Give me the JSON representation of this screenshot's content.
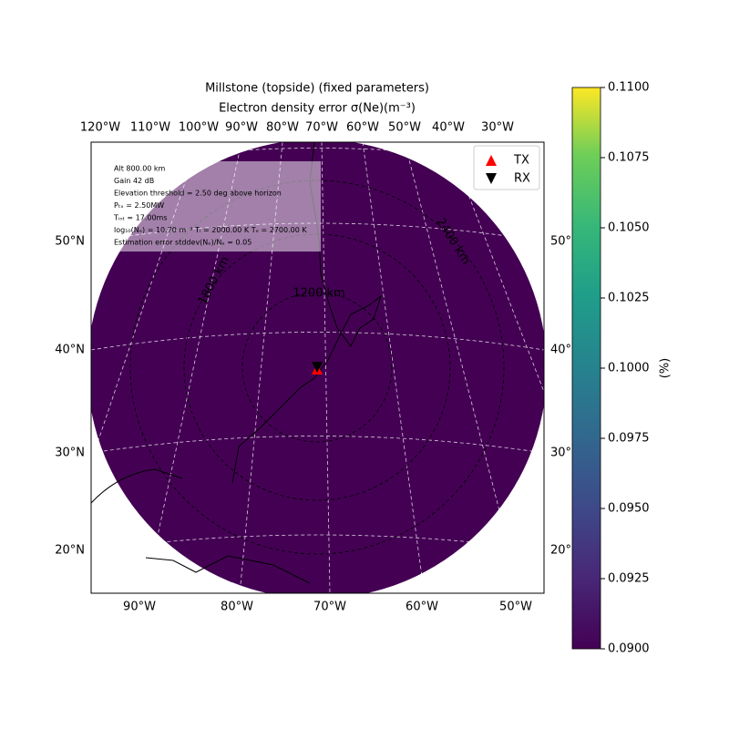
{
  "title": "Millstone (topside) (fixed parameters)",
  "subtitle": "Electron density error σ(Ne)(m⁻³)",
  "info_lines": [
    "Alt 800.00 km",
    "Gain 42 dB",
    "Elevation threshold = 2.50 deg above horizon",
    "Pₜₓ = 2.50MW",
    "Tᵢₙₜ = 17.00ms",
    "log₁₀(Nₑ) = 10.70 m⁻³ Tᵢ = 2000.00 K Tₑ = 2700.00 K",
    "Estimation error stddev(Nₑ)/Nₑ = 0.05"
  ],
  "legend": [
    {
      "name": "TX",
      "color": "#ff0000"
    },
    {
      "name": "RX",
      "color": "#000000"
    }
  ],
  "top_lon_labels": [
    "120°W",
    "110°W",
    "100°W",
    "90°W",
    "80°W",
    "70°W",
    "60°W",
    "50°W",
    "40°W",
    "30°W"
  ],
  "bottom_lon_labels": [
    "90°W",
    "80°W",
    "70°W",
    "60°W",
    "50°W"
  ],
  "left_lat_labels": [
    "50°N",
    "40°N",
    "30°N",
    "20°N"
  ],
  "right_lat_labels": [
    "50°",
    "40°",
    "30°",
    "20°"
  ],
  "range_labels": [
    "1200 km",
    "1800 km",
    "2400 km"
  ],
  "colorbar": {
    "label": "(%)",
    "ylim": [
      0.09,
      0.11
    ],
    "yticks": [
      {
        "value": 0.09,
        "label": "0.0900"
      },
      {
        "value": 0.0925,
        "label": "0.0925"
      },
      {
        "value": 0.095,
        "label": "0.0950"
      },
      {
        "value": 0.0975,
        "label": "0.0975"
      },
      {
        "value": 0.1,
        "label": "0.1000"
      },
      {
        "value": 0.1025,
        "label": "0.1025"
      },
      {
        "value": 0.105,
        "label": "0.1050"
      },
      {
        "value": 0.1075,
        "label": "0.1075"
      },
      {
        "value": 0.11,
        "label": "0.1100"
      }
    ]
  }
}
